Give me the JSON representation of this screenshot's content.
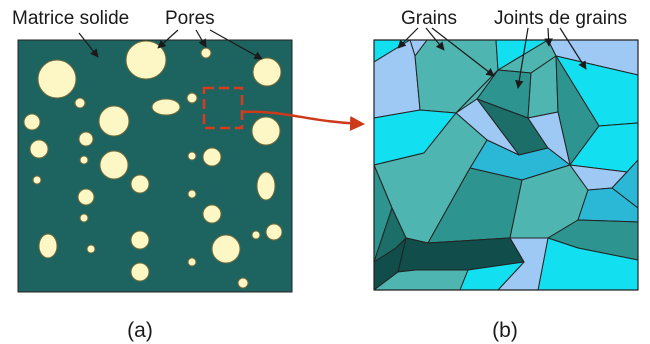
{
  "figure": {
    "panel_a": {
      "label": "(a)",
      "callouts": {
        "matrix": "Matrice solide",
        "pores": "Pores"
      },
      "colors": {
        "matrix": "#1d6360",
        "pore": "#fdf6c5",
        "pore_stroke": "#6f6a3a",
        "zoom_box": "#d93b1f"
      }
    },
    "panel_b": {
      "label": "(b)",
      "callouts": {
        "grains": "Grains",
        "boundaries": "Joints de grains"
      },
      "colors": {
        "cyan": "#12dff0",
        "light_blue": "#9fc9f5",
        "teal_light": "#4fb5b0",
        "teal": "#2e9490",
        "teal_dark": "#1c6e69",
        "darkest": "#114e4b",
        "boundary": "#222222"
      }
    },
    "arrow_color": "#cc3a1a"
  }
}
